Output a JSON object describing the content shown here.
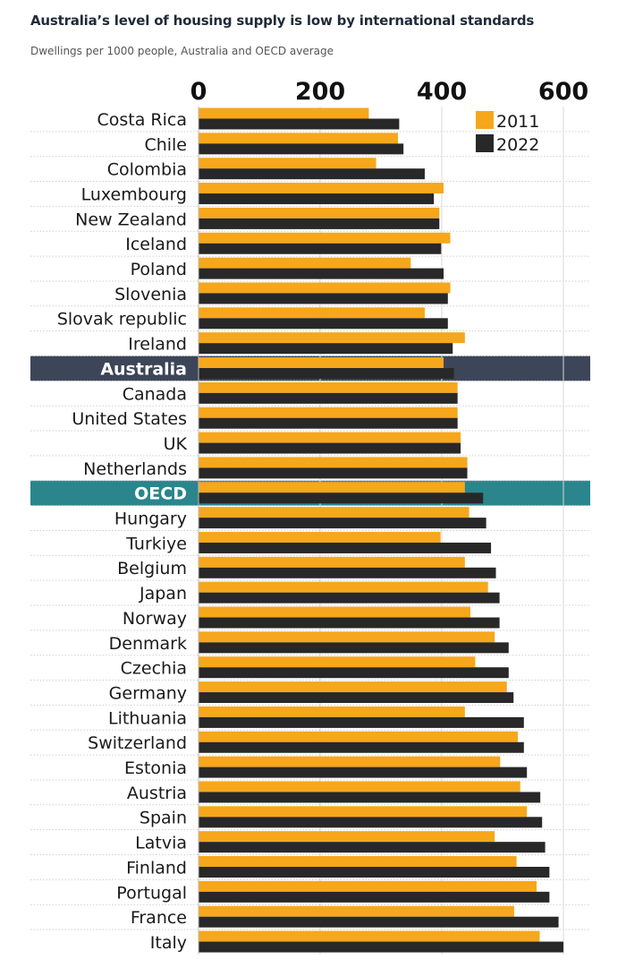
{
  "title": "Australia’s level of housing supply is low by international standards",
  "subtitle": "Dwellings per 1000 people, Australia and OECD average",
  "colors": {
    "y2011": "#f6a71c",
    "y2022": "#282828",
    "australia_band": "#3d4558",
    "oecd_band": "#2a868c"
  },
  "chart_data": {
    "type": "bar",
    "orientation": "horizontal",
    "categories": [
      "Costa Rica",
      "Chile",
      "Colombia",
      "Luxembourg",
      "New Zealand",
      "Iceland",
      "Poland",
      "Slovenia",
      "Slovak republic",
      "Ireland",
      "Australia",
      "Canada",
      "United States",
      "UK",
      "Netherlands",
      "OECD",
      "Hungary",
      "Turkiye",
      "Belgium",
      "Japan",
      "Norway",
      "Denmark",
      "Czechia",
      "Germany",
      "Lithuania",
      "Switzerland",
      "Estonia",
      "Austria",
      "Spain",
      "Latvia",
      "Finland",
      "Portugal",
      "France",
      "Italy"
    ],
    "highlighted": [
      "Australia",
      "OECD"
    ],
    "series": [
      {
        "name": "2011",
        "values": [
          280,
          328,
          292,
          403,
          396,
          414,
          349,
          414,
          372,
          438,
          403,
          426,
          426,
          431,
          442,
          438,
          445,
          398,
          438,
          476,
          447,
          487,
          455,
          507,
          438,
          525,
          496,
          529,
          540,
          487,
          523,
          556,
          519,
          561
        ]
      },
      {
        "name": "2022",
        "values": [
          330,
          337,
          372,
          387,
          396,
          399,
          403,
          410,
          410,
          418,
          420,
          426,
          426,
          431,
          442,
          468,
          473,
          481,
          489,
          495,
          495,
          510,
          510,
          518,
          535,
          535,
          540,
          562,
          565,
          570,
          577,
          577,
          592,
          600
        ]
      }
    ],
    "xaxis": {
      "ticks": [
        0,
        200,
        400,
        600
      ],
      "tick_labels": [
        "0",
        "200",
        "400",
        "600"
      ],
      "range": [
        0,
        650
      ],
      "position": "top"
    },
    "grid": true,
    "legend": "top-right"
  }
}
